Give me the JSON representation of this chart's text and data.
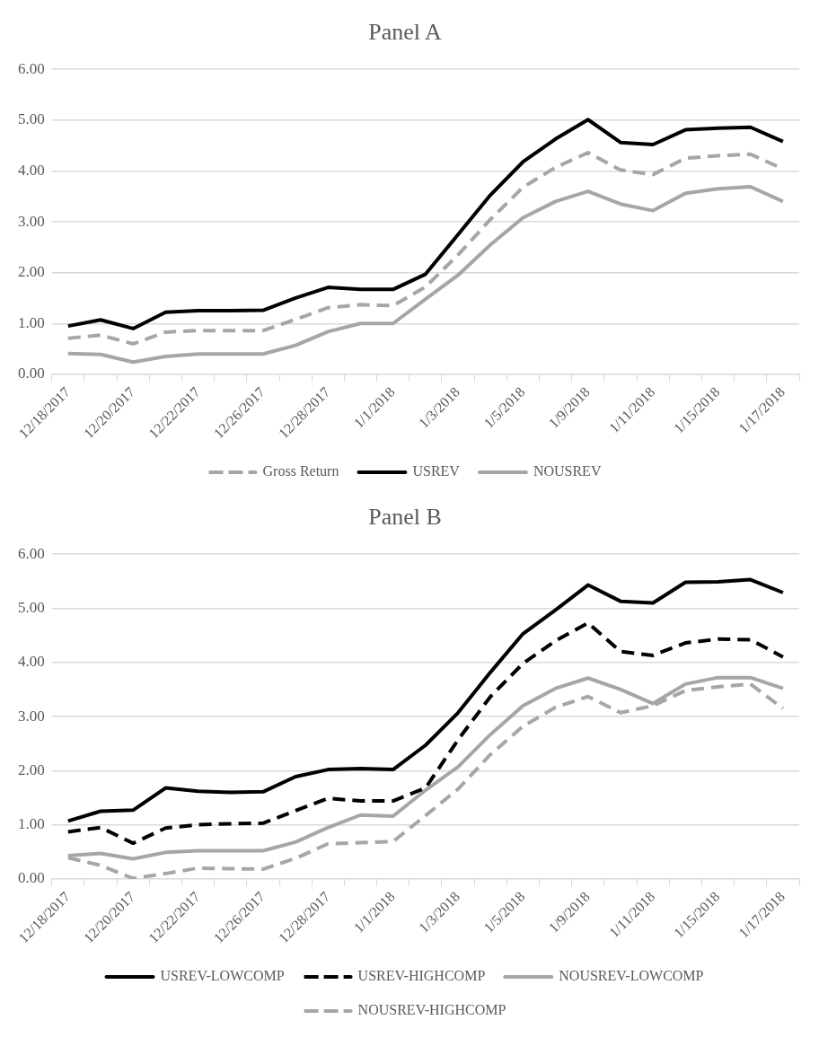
{
  "chart_data": [
    {
      "type": "line",
      "title": "Panel A",
      "categories": [
        "12/18/2017",
        null,
        "12/20/2017",
        null,
        "12/22/2017",
        null,
        "12/26/2017",
        null,
        "12/28/2017",
        null,
        "1/1/2018",
        null,
        "1/3/2018",
        null,
        "1/5/2018",
        null,
        "1/9/2018",
        null,
        "1/11/2018",
        null,
        "1/15/2018",
        null,
        "1/17/2018"
      ],
      "ylim": [
        0,
        6
      ],
      "yticks": [
        {
          "value": 0,
          "label": "0.00"
        },
        {
          "value": 1,
          "label": "1.00"
        },
        {
          "value": 2,
          "label": "2.00"
        },
        {
          "value": 3,
          "label": "3.00"
        },
        {
          "value": 4,
          "label": "4.00"
        },
        {
          "value": 5,
          "label": "5.00"
        },
        {
          "value": 6,
          "label": "6.00"
        }
      ],
      "grid": "y",
      "legend": "bottom",
      "marker": "none",
      "series": [
        {
          "name": "Gross Return",
          "color": "#a6a6a6",
          "line_style": "dashed",
          "values": [
            0.71,
            0.77,
            0.6,
            0.83,
            0.86,
            0.86,
            0.86,
            1.08,
            1.31,
            1.37,
            1.35,
            1.72,
            2.35,
            3.05,
            3.68,
            4.07,
            4.36,
            4.02,
            3.93,
            4.25,
            4.3,
            4.33,
            4.04
          ]
        },
        {
          "name": "USREV",
          "color": "#000000",
          "line_style": "solid",
          "values": [
            0.95,
            1.07,
            0.9,
            1.22,
            1.25,
            1.25,
            1.26,
            1.5,
            1.71,
            1.67,
            1.67,
            1.97,
            2.75,
            3.53,
            4.18,
            4.63,
            5.01,
            4.56,
            4.52,
            4.81,
            4.84,
            4.86,
            4.58
          ]
        },
        {
          "name": "NOUSREV",
          "color": "#a6a6a6",
          "line_style": "solid",
          "values": [
            0.41,
            0.39,
            0.24,
            0.35,
            0.4,
            0.4,
            0.4,
            0.57,
            0.84,
            1.0,
            1.0,
            1.48,
            1.95,
            2.55,
            3.08,
            3.4,
            3.6,
            3.35,
            3.22,
            3.56,
            3.65,
            3.69,
            3.4
          ]
        }
      ]
    },
    {
      "type": "line",
      "title": "Panel B",
      "categories": [
        "12/18/2017",
        null,
        "12/20/2017",
        null,
        "12/22/2017",
        null,
        "12/26/2017",
        null,
        "12/28/2017",
        null,
        "1/1/2018",
        null,
        "1/3/2018",
        null,
        "1/5/2018",
        null,
        "1/9/2018",
        null,
        "1/11/2018",
        null,
        "1/15/2018",
        null,
        "1/17/2018"
      ],
      "ylim": [
        0,
        6
      ],
      "yticks": [
        {
          "value": 0,
          "label": "0.00"
        },
        {
          "value": 1,
          "label": "1.00"
        },
        {
          "value": 2,
          "label": "2.00"
        },
        {
          "value": 3,
          "label": "3.00"
        },
        {
          "value": 4,
          "label": "4.00"
        },
        {
          "value": 5,
          "label": "5.00"
        },
        {
          "value": 6,
          "label": "6.00"
        }
      ],
      "grid": "y",
      "legend": "bottom",
      "marker": "none",
      "series": [
        {
          "name": "USREV-LOWCOMP",
          "color": "#000000",
          "line_style": "solid",
          "values": [
            1.07,
            1.25,
            1.27,
            1.68,
            1.62,
            1.6,
            1.61,
            1.89,
            2.02,
            2.04,
            2.02,
            2.47,
            3.07,
            3.82,
            4.53,
            4.97,
            5.43,
            5.13,
            5.1,
            5.48,
            5.49,
            5.53,
            5.29
          ]
        },
        {
          "name": "USREV-HIGHCOMP",
          "color": "#000000",
          "line_style": "dashed",
          "values": [
            0.87,
            0.95,
            0.66,
            0.94,
            1.0,
            1.02,
            1.03,
            1.26,
            1.49,
            1.44,
            1.44,
            1.68,
            2.57,
            3.37,
            3.98,
            4.4,
            4.73,
            4.2,
            4.13,
            4.36,
            4.43,
            4.42,
            4.1
          ]
        },
        {
          "name": "NOUSREV-LOWCOMP",
          "color": "#a6a6a6",
          "line_style": "solid",
          "values": [
            0.43,
            0.47,
            0.37,
            0.49,
            0.52,
            0.52,
            0.52,
            0.68,
            0.95,
            1.18,
            1.16,
            1.64,
            2.07,
            2.67,
            3.2,
            3.52,
            3.71,
            3.5,
            3.24,
            3.6,
            3.72,
            3.72,
            3.52
          ]
        },
        {
          "name": "NOUSREV-HIGHCOMP",
          "color": "#a6a6a6",
          "line_style": "dashed",
          "values": [
            0.39,
            0.25,
            0.01,
            0.1,
            0.2,
            0.19,
            0.18,
            0.38,
            0.65,
            0.67,
            0.69,
            1.17,
            1.66,
            2.3,
            2.82,
            3.17,
            3.37,
            3.07,
            3.2,
            3.48,
            3.55,
            3.6,
            3.15
          ]
        }
      ]
    }
  ]
}
